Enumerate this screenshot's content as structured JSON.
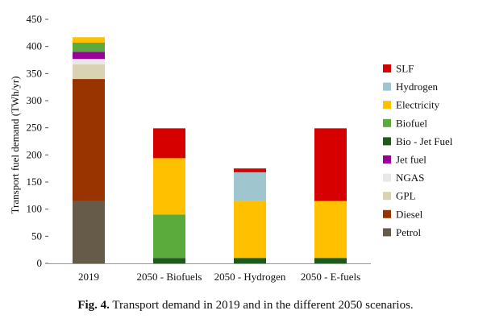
{
  "chart_data": {
    "type": "bar",
    "stacked": true,
    "title": "",
    "xlabel": "",
    "ylabel": "Transport fuel demand (TWh/yr)",
    "ylim": [
      0,
      450
    ],
    "yticks": [
      0,
      50,
      100,
      150,
      200,
      250,
      300,
      350,
      400,
      450
    ],
    "grid": false,
    "legend_position": "right",
    "categories": [
      "2019",
      "2050 - Biofuels",
      "2050 - Hydrogen",
      "2050 - E-fuels"
    ],
    "series": [
      {
        "name": "Petrol",
        "color": "#665a48",
        "values": [
          115,
          0,
          0,
          0
        ]
      },
      {
        "name": "Diesel",
        "color": "#993300",
        "values": [
          225,
          0,
          0,
          0
        ]
      },
      {
        "name": "GPL",
        "color": "#d9d2b3",
        "values": [
          27,
          0,
          0,
          0
        ]
      },
      {
        "name": "NGAS",
        "color": "#e8e8e8",
        "values": [
          10,
          0,
          0,
          0
        ]
      },
      {
        "name": "Jet fuel",
        "color": "#990099",
        "values": [
          13,
          0,
          0,
          0
        ]
      },
      {
        "name": "Bio - Jet Fuel",
        "color": "#1e5a1e",
        "values": [
          0,
          10,
          10,
          10
        ]
      },
      {
        "name": "Biofuel",
        "color": "#5aab3c",
        "values": [
          17,
          80,
          0,
          0
        ]
      },
      {
        "name": "Electricity",
        "color": "#ffc000",
        "values": [
          10,
          104,
          105,
          105
        ]
      },
      {
        "name": "Hydrogen",
        "color": "#9fc5cf",
        "values": [
          0,
          0,
          53,
          0
        ]
      },
      {
        "name": "SLF",
        "color": "#d60000",
        "values": [
          0,
          55,
          7,
          134
        ]
      }
    ],
    "legend_order": [
      "SLF",
      "Hydrogen",
      "Electricity",
      "Biofuel",
      "Bio - Jet Fuel",
      "Jet fuel",
      "NGAS",
      "GPL",
      "Diesel",
      "Petrol"
    ]
  },
  "caption": {
    "label": "Fig. 4.",
    "text": "Transport demand in 2019 and in the different 2050 scenarios."
  }
}
